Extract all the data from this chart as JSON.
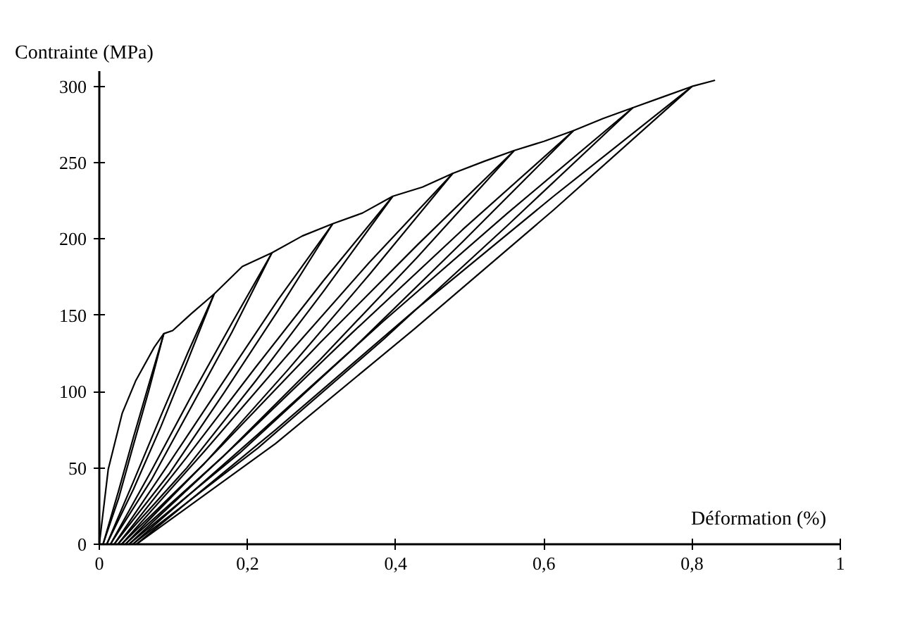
{
  "chart_data": {
    "type": "line",
    "xlabel": "Déformation (%)",
    "ylabel": "Contrainte (MPa)",
    "xlim": [
      0,
      1
    ],
    "ylim": [
      0,
      310
    ],
    "xticks": [
      0,
      {
        "value": 0.2,
        "label": "0,2"
      },
      {
        "value": 0.4,
        "label": "0,4"
      },
      {
        "value": 0.6,
        "label": "0,6"
      },
      {
        "value": 0.8,
        "label": "0,8"
      },
      1
    ],
    "yticks": [
      0,
      50,
      100,
      150,
      200,
      250,
      300
    ],
    "grid": false,
    "series": [
      {
        "color": "#000000",
        "x": [
          0,
          0.012,
          0.031,
          0.049,
          0.074,
          0.087,
          0.099,
          0.124,
          0.155,
          0.193,
          0.233,
          0.274,
          0.315,
          0.355,
          0.396,
          0.436,
          0.477,
          0.52,
          0.56,
          0.6,
          0.64,
          0.68,
          0.72,
          0.76,
          0.8,
          0.831
        ],
        "values": [
          0,
          49,
          86,
          107,
          129,
          138,
          140,
          151,
          164,
          182,
          191,
          202,
          210,
          217,
          228,
          234,
          243,
          251,
          258,
          264,
          271,
          279,
          286,
          293,
          300,
          304
        ]
      },
      {
        "color": "#000000",
        "x": [
          0.005,
          0.026,
          0.046,
          0.067,
          0.087
        ],
        "values": [
          0,
          30,
          65,
          101,
          138
        ]
      },
      {
        "color": "#000000",
        "x": [
          0.005,
          0.026,
          0.046,
          0.067,
          0.087
        ],
        "values": [
          0,
          35,
          70,
          105,
          138
        ]
      },
      {
        "color": "#000000",
        "x": [
          0.01,
          0.046,
          0.083,
          0.119,
          0.155
        ],
        "values": [
          0,
          36,
          77,
          120,
          164
        ]
      },
      {
        "color": "#000000",
        "x": [
          0.01,
          0.046,
          0.083,
          0.119,
          0.155
        ],
        "values": [
          0,
          41,
          84,
          125,
          164
        ]
      },
      {
        "color": "#000000",
        "x": [
          0.015,
          0.07,
          0.124,
          0.179,
          0.233
        ],
        "values": [
          0,
          42,
          90,
          139,
          191
        ]
      },
      {
        "color": "#000000",
        "x": [
          0.015,
          0.07,
          0.124,
          0.179,
          0.233
        ],
        "values": [
          0,
          48,
          97,
          145,
          191
        ]
      },
      {
        "color": "#000000",
        "x": [
          0.02,
          0.094,
          0.168,
          0.241,
          0.315
        ],
        "values": [
          0,
          46,
          99,
          153,
          210
        ]
      },
      {
        "color": "#000000",
        "x": [
          0.02,
          0.094,
          0.168,
          0.241,
          0.315
        ],
        "values": [
          0,
          53,
          107,
          160,
          210
        ]
      },
      {
        "color": "#000000",
        "x": [
          0.025,
          0.118,
          0.211,
          0.303,
          0.396
        ],
        "values": [
          0,
          50,
          107,
          166,
          228
        ]
      },
      {
        "color": "#000000",
        "x": [
          0.025,
          0.118,
          0.211,
          0.303,
          0.396
        ],
        "values": [
          0,
          57,
          116,
          173,
          228
        ]
      },
      {
        "color": "#000000",
        "x": [
          0.03,
          0.142,
          0.254,
          0.365,
          0.477
        ],
        "values": [
          0,
          53,
          114,
          177,
          243
        ]
      },
      {
        "color": "#000000",
        "x": [
          0.03,
          0.142,
          0.254,
          0.365,
          0.477
        ],
        "values": [
          0,
          61,
          124,
          185,
          243
        ]
      },
      {
        "color": "#000000",
        "x": [
          0.035,
          0.166,
          0.298,
          0.429,
          0.56
        ],
        "values": [
          0,
          57,
          121,
          188,
          258
        ]
      },
      {
        "color": "#000000",
        "x": [
          0.035,
          0.166,
          0.298,
          0.429,
          0.56
        ],
        "values": [
          0,
          65,
          132,
          196,
          258
        ]
      },
      {
        "color": "#000000",
        "x": [
          0.04,
          0.19,
          0.34,
          0.49,
          0.64
        ],
        "values": [
          0,
          60,
          127,
          198,
          271
        ]
      },
      {
        "color": "#000000",
        "x": [
          0.04,
          0.19,
          0.34,
          0.49,
          0.64
        ],
        "values": [
          0,
          68,
          138,
          206,
          271
        ]
      },
      {
        "color": "#000000",
        "x": [
          0.045,
          0.214,
          0.383,
          0.551,
          0.72
        ],
        "values": [
          0,
          63,
          134,
          209,
          286
        ]
      },
      {
        "color": "#000000",
        "x": [
          0.045,
          0.214,
          0.383,
          0.551,
          0.72
        ],
        "values": [
          0,
          72,
          146,
          217,
          286
        ]
      },
      {
        "color": "#000000",
        "x": [
          0.05,
          0.238,
          0.425,
          0.613,
          0.8
        ],
        "values": [
          0,
          66,
          141,
          219,
          300
        ]
      },
      {
        "color": "#000000",
        "x": [
          0.05,
          0.238,
          0.425,
          0.613,
          0.8
        ],
        "values": [
          0,
          75,
          153,
          228,
          300
        ]
      }
    ]
  }
}
